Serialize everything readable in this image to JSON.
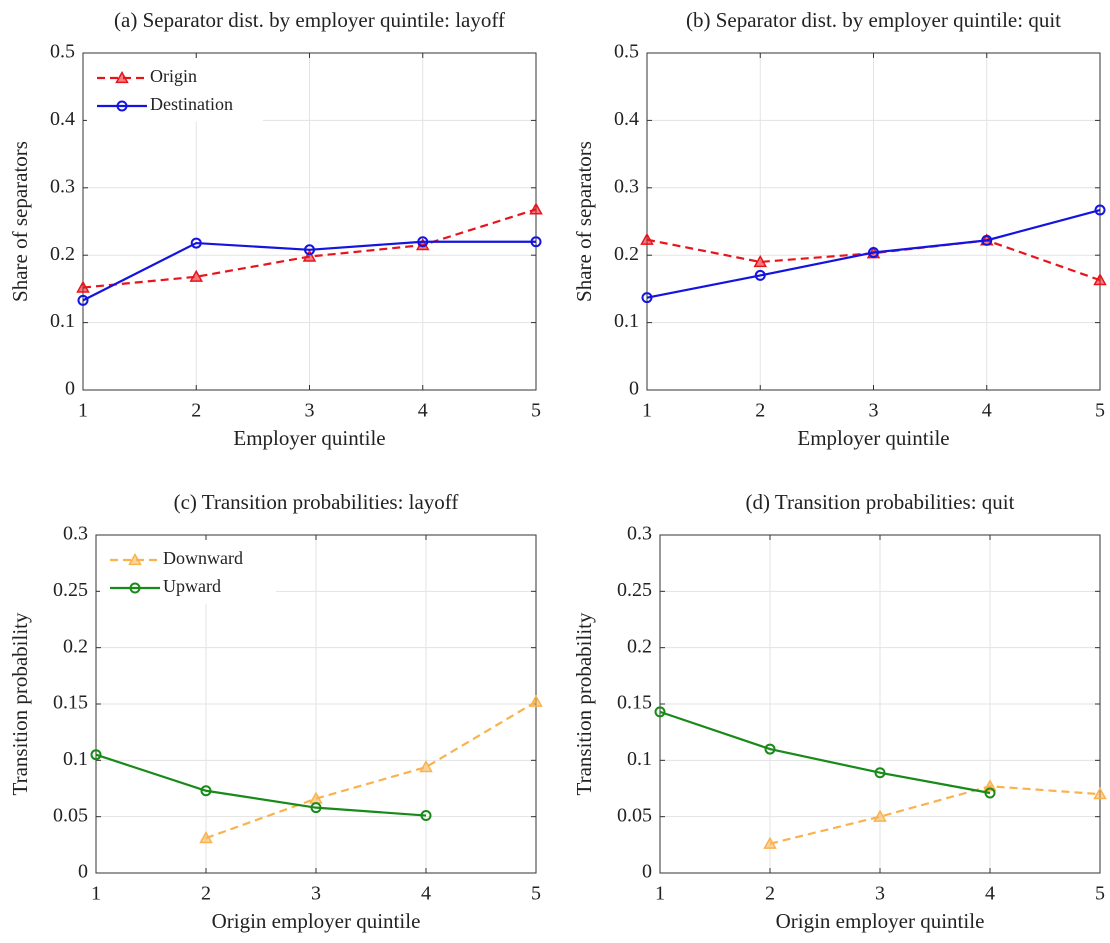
{
  "chart_data": [
    {
      "type": "line",
      "title": "(a) Separator dist. by employer quintile: layoff",
      "xlabel": "Employer quintile",
      "ylabel": "Share of separators",
      "x": [
        1,
        2,
        3,
        4,
        5
      ],
      "xlim": [
        1,
        5
      ],
      "xticks": [
        1,
        2,
        3,
        4,
        5
      ],
      "ylim": [
        0,
        0.5
      ],
      "yticks": [
        0,
        0.1,
        0.2,
        0.3,
        0.4,
        0.5
      ],
      "grid": true,
      "legend": "upper left",
      "series": [
        {
          "name": "Origin",
          "color": "#e8141c",
          "dashed": true,
          "marker": "triangle",
          "values": [
            0.152,
            0.168,
            0.198,
            0.215,
            0.268
          ]
        },
        {
          "name": "Destination",
          "color": "#1414e0",
          "dashed": false,
          "marker": "circle",
          "values": [
            0.133,
            0.218,
            0.208,
            0.22,
            0.22
          ]
        }
      ]
    },
    {
      "type": "line",
      "title": "(b) Separator dist. by employer quintile: quit",
      "xlabel": "Employer quintile",
      "ylabel": "Share of separators",
      "x": [
        1,
        2,
        3,
        4,
        5
      ],
      "xlim": [
        1,
        5
      ],
      "xticks": [
        1,
        2,
        3,
        4,
        5
      ],
      "ylim": [
        0,
        0.5
      ],
      "yticks": [
        0,
        0.1,
        0.2,
        0.3,
        0.4,
        0.5
      ],
      "grid": true,
      "series": [
        {
          "color": "#e8141c",
          "dashed": true,
          "marker": "triangle",
          "values": [
            0.223,
            0.19,
            0.203,
            0.222,
            0.163
          ]
        },
        {
          "color": "#1414e0",
          "dashed": false,
          "marker": "circle",
          "values": [
            0.137,
            0.17,
            0.204,
            0.222,
            0.267
          ]
        }
      ]
    },
    {
      "type": "line",
      "title": "(c) Transition probabilities: layoff",
      "xlabel": "Origin employer quintile",
      "ylabel": "Transition probability",
      "x": [
        1,
        2,
        3,
        4,
        5
      ],
      "xlim": [
        1,
        5
      ],
      "xticks": [
        1,
        2,
        3,
        4,
        5
      ],
      "ylim": [
        0,
        0.3
      ],
      "yticks": [
        0,
        0.05,
        0.1,
        0.15,
        0.2,
        0.25,
        0.3
      ],
      "grid": true,
      "legend": "upper left",
      "series": [
        {
          "name": "Downward",
          "color": "#f9b24e",
          "dashed": true,
          "marker": "triangle",
          "values": [
            null,
            0.031,
            0.066,
            0.094,
            0.152
          ]
        },
        {
          "name": "Upward",
          "color": "#188a18",
          "dashed": false,
          "marker": "circle",
          "values": [
            0.105,
            0.073,
            0.058,
            0.051,
            null
          ]
        }
      ]
    },
    {
      "type": "line",
      "title": "(d) Transition probabilities: quit",
      "xlabel": "Origin employer quintile",
      "ylabel": "Transition probability",
      "x": [
        1,
        2,
        3,
        4,
        5
      ],
      "xlim": [
        1,
        5
      ],
      "xticks": [
        1,
        2,
        3,
        4,
        5
      ],
      "ylim": [
        0,
        0.3
      ],
      "yticks": [
        0,
        0.05,
        0.1,
        0.15,
        0.2,
        0.25,
        0.3
      ],
      "grid": true,
      "series": [
        {
          "color": "#f9b24e",
          "dashed": true,
          "marker": "triangle",
          "values": [
            null,
            0.026,
            0.05,
            0.077,
            0.07
          ]
        },
        {
          "color": "#188a18",
          "dashed": false,
          "marker": "circle",
          "values": [
            0.143,
            0.11,
            0.089,
            0.071,
            null
          ]
        }
      ]
    }
  ]
}
